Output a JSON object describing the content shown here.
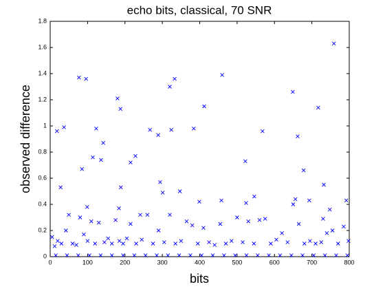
{
  "chart_data": {
    "type": "scatter",
    "title": "echo bits, classical, 70 SNR",
    "x_label": "bits",
    "y_label": "observed difference",
    "color": "#0000ff",
    "marker": "x",
    "grid": false,
    "xlim": [
      0,
      800
    ],
    "ylim": [
      0,
      1.8
    ],
    "xticks": [
      0,
      100,
      200,
      300,
      400,
      500,
      600,
      700,
      800
    ],
    "yticks": [
      0,
      0.2,
      0.4,
      0.6,
      0.8,
      1,
      1.2,
      1.4,
      1.6,
      1.8
    ],
    "x": [
      18,
      28,
      37,
      77,
      96,
      85,
      99,
      114,
      123,
      136,
      142,
      180,
      188,
      189,
      184,
      215,
      228,
      241,
      267,
      289,
      294,
      301,
      320,
      324,
      333,
      347,
      384,
      399,
      412,
      460,
      458,
      522,
      524,
      546,
      568,
      649,
      656,
      662,
      678,
      693,
      717,
      732,
      759,
      748,
      792,
      730,
      5,
      12,
      20,
      30,
      42,
      50,
      60,
      70,
      80,
      90,
      100,
      110,
      120,
      130,
      145,
      155,
      165,
      175,
      185,
      195,
      205,
      215,
      230,
      245,
      260,
      275,
      290,
      305,
      320,
      335,
      350,
      365,
      380,
      395,
      410,
      425,
      440,
      455,
      470,
      485,
      500,
      515,
      530,
      545,
      560,
      575,
      590,
      605,
      620,
      635,
      650,
      665,
      680,
      695,
      710,
      725,
      740,
      755,
      770,
      785,
      798,
      15,
      45,
      75,
      105,
      135,
      165,
      195,
      225,
      255,
      285,
      315,
      345,
      375,
      405,
      435,
      465,
      495,
      525,
      555,
      585,
      615,
      645,
      675,
      705,
      735,
      765,
      795
    ],
    "y": [
      0.96,
      0.53,
      0.99,
      1.37,
      1.36,
      0.67,
      0.38,
      0.76,
      0.98,
      0.74,
      0.87,
      1.21,
      1.13,
      0.53,
      0.37,
      0.72,
      0.77,
      0.32,
      0.97,
      0.93,
      0.57,
      0.49,
      1.3,
      0.97,
      1.36,
      0.5,
      0.98,
      0.42,
      1.15,
      1.39,
      0.43,
      0.73,
      0.41,
      0.46,
      0.96,
      1.26,
      0.44,
      0.92,
      0.66,
      0.43,
      1.14,
      0.55,
      1.63,
      0.36,
      0.43,
      0.29,
      0.15,
      0.08,
      0.12,
      0.1,
      0.2,
      0.32,
      0.1,
      0.09,
      0.3,
      0.17,
      0.12,
      0.27,
      0.1,
      0.26,
      0.11,
      0.14,
      0.1,
      0.28,
      0.12,
      0.1,
      0.14,
      0.25,
      0.1,
      0.13,
      0.32,
      0.1,
      0.2,
      0.11,
      0.32,
      0.1,
      0.12,
      0.27,
      0.24,
      0.1,
      0.22,
      0.11,
      0.09,
      0.25,
      0.1,
      0.12,
      0.3,
      0.11,
      0.27,
      0.1,
      0.28,
      0.29,
      0.1,
      0.13,
      0.18,
      0.11,
      0.4,
      0.25,
      0.1,
      0.12,
      0.1,
      0.11,
      0.18,
      0.2,
      0.1,
      0.23,
      0.12,
      0.01,
      0.01,
      0.01,
      0.01,
      0.01,
      0.01,
      0.01,
      0.01,
      0.01,
      0.01,
      0.01,
      0.01,
      0.01,
      0.01,
      0.01,
      0.01,
      0.01,
      0.01,
      0.01,
      0.01,
      0.01,
      0.01,
      0.01,
      0.01,
      0.01,
      0.01,
      0.01
    ]
  }
}
